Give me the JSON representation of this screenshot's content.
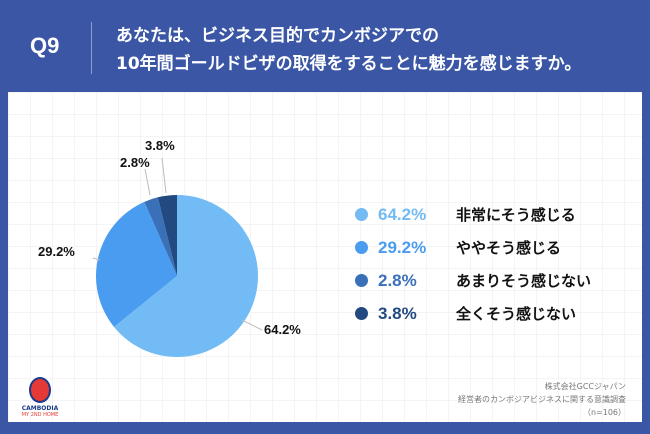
{
  "header": {
    "question_no": "Q9",
    "title_line1": "あなたは、ビジネス目的でカンボジアでの",
    "title_line2": "10年間ゴールドビザの取得をすることに魅力を感じますか。"
  },
  "colors": {
    "background": "#3a56a5",
    "slice1": "#72bbf5",
    "slice2": "#4a9cf0",
    "slice3": "#3a70b8",
    "slice4": "#224a80"
  },
  "legend": [
    {
      "pct": "64.2%",
      "label": "非常にそう感じる",
      "color": "#72bbf5"
    },
    {
      "pct": "29.2%",
      "label": "ややそう感じる",
      "color": "#4a9cf0"
    },
    {
      "pct": "2.8%",
      "label": "あまりそう感じない",
      "color": "#3a70b8"
    },
    {
      "pct": "3.8%",
      "label": "全くそう感じない",
      "color": "#224a80"
    }
  ],
  "pie_labels": {
    "s1": "64.2%",
    "s2": "29.2%",
    "s3": "2.8%",
    "s4": "3.8%"
  },
  "logo": {
    "line1": "CAMBODIA",
    "line2": "MY 2ND HOME"
  },
  "source": {
    "line1": "株式会社GCCジャパン",
    "line2": "経営者のカンボジアビジネスに関する意識調査",
    "line3": "（n=106）"
  },
  "chart_data": {
    "type": "pie",
    "title": "あなたは、ビジネス目的でカンボジアでの10年間ゴールドビザの取得をすることに魅力を感じますか。",
    "categories": [
      "非常にそう感じる",
      "ややそう感じる",
      "あまりそう感じない",
      "全くそう感じない"
    ],
    "values": [
      64.2,
      29.2,
      2.8,
      3.8
    ],
    "unit": "%",
    "n": 106,
    "legend_position": "right",
    "start_angle": "12 o'clock, clockwise"
  }
}
